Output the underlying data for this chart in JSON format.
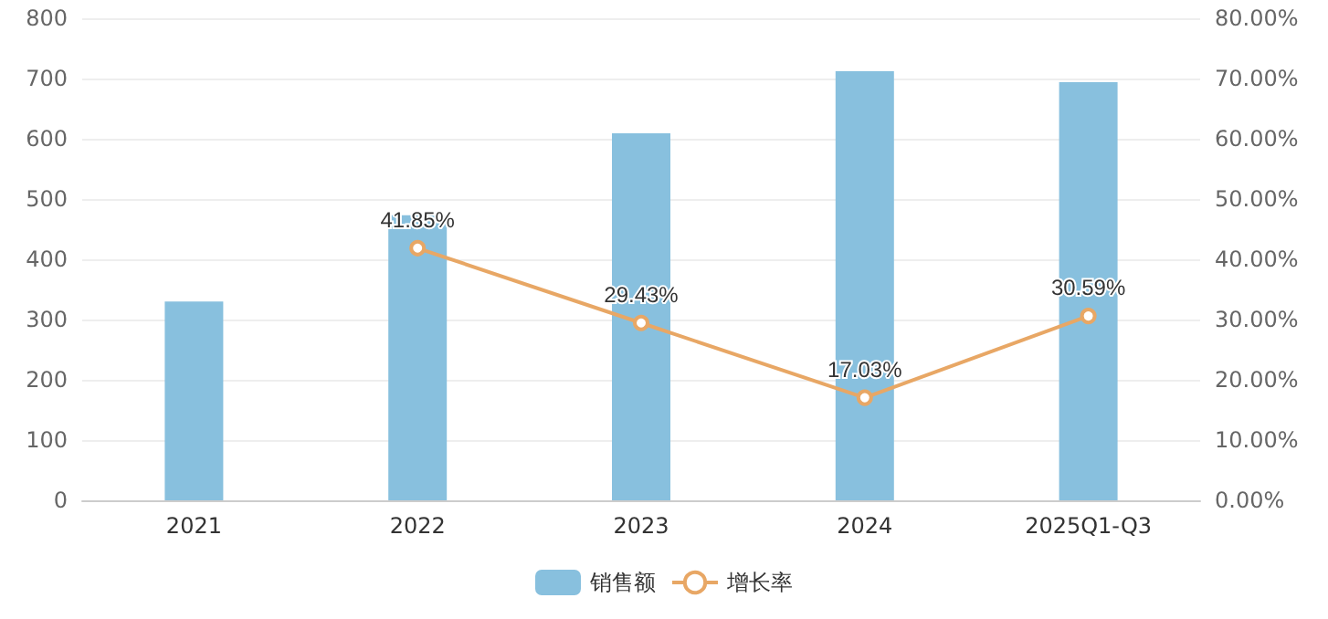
{
  "chart_data": {
    "type": "bar",
    "categories": [
      "2021",
      "2022",
      "2023",
      "2024",
      "2025Q1-Q3"
    ],
    "series": [
      {
        "name": "销售额",
        "color": "#88c0de",
        "values": [
          330,
          473,
          609,
          712,
          694
        ]
      },
      {
        "name": "增长率",
        "type": "line",
        "axis": "y2",
        "color": "#e8a765",
        "marker": "circle",
        "values": [
          null,
          41.85,
          29.43,
          17.03,
          30.59
        ],
        "value_labels": [
          null,
          "41.85%",
          "29.43%",
          "17.03%",
          "30.59%"
        ]
      }
    ],
    "ylim": [
      0,
      800
    ],
    "yticks": [
      0,
      100,
      200,
      300,
      400,
      500,
      600,
      700,
      800
    ],
    "y2lim": [
      0,
      80
    ],
    "y2ticks": [
      {
        "value": 0,
        "label": "0.00%"
      },
      {
        "value": 10,
        "label": "10.00%"
      },
      {
        "value": 20,
        "label": "20.00%"
      },
      {
        "value": 30,
        "label": "30.00%"
      },
      {
        "value": 40,
        "label": "40.00%"
      },
      {
        "value": 50,
        "label": "50.00%"
      },
      {
        "value": 60,
        "label": "60.00%"
      },
      {
        "value": 70,
        "label": "70.00%"
      },
      {
        "value": 80,
        "label": "80.00%"
      }
    ],
    "grid": "y",
    "legend": "bottom"
  }
}
